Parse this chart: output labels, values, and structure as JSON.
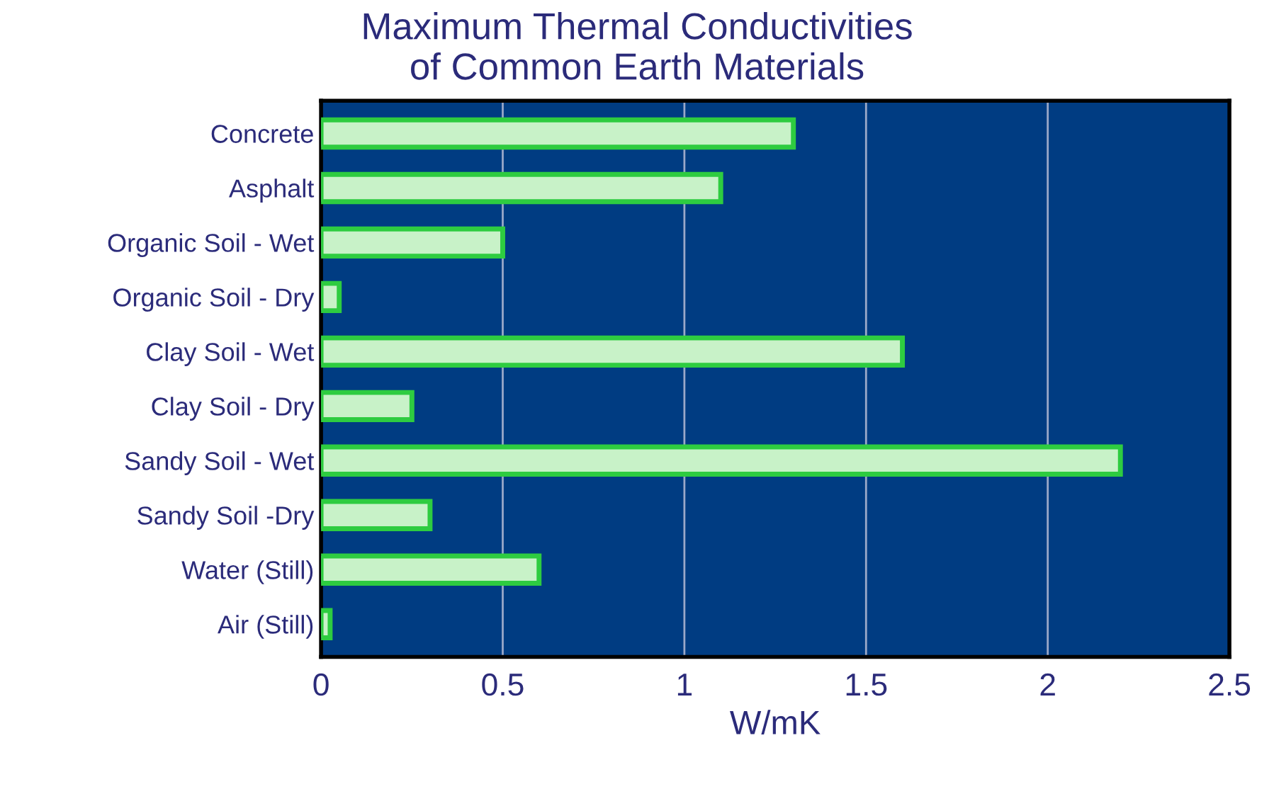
{
  "chart_data": {
    "type": "bar",
    "orientation": "horizontal",
    "title": "Maximum Thermal Conductivities\nof Common Earth Materials",
    "xlabel": "W/mK",
    "categories": [
      "Concrete",
      "Asphalt",
      "Organic Soil - Wet",
      "Organic Soil - Dry",
      "Clay Soil - Wet",
      "Clay Soil - Dry",
      "Sandy Soil - Wet",
      "Sandy Soil -Dry",
      "Water (Still)",
      "Air (Still)"
    ],
    "values": [
      1.3,
      1.1,
      0.5,
      0.05,
      1.6,
      0.25,
      2.2,
      0.3,
      0.6,
      0.025
    ],
    "color": "#c8f2c8",
    "xlim": [
      0,
      2.5
    ],
    "xticks": [
      0,
      0.5,
      1,
      1.5,
      2,
      2.5
    ],
    "grid": "x"
  }
}
